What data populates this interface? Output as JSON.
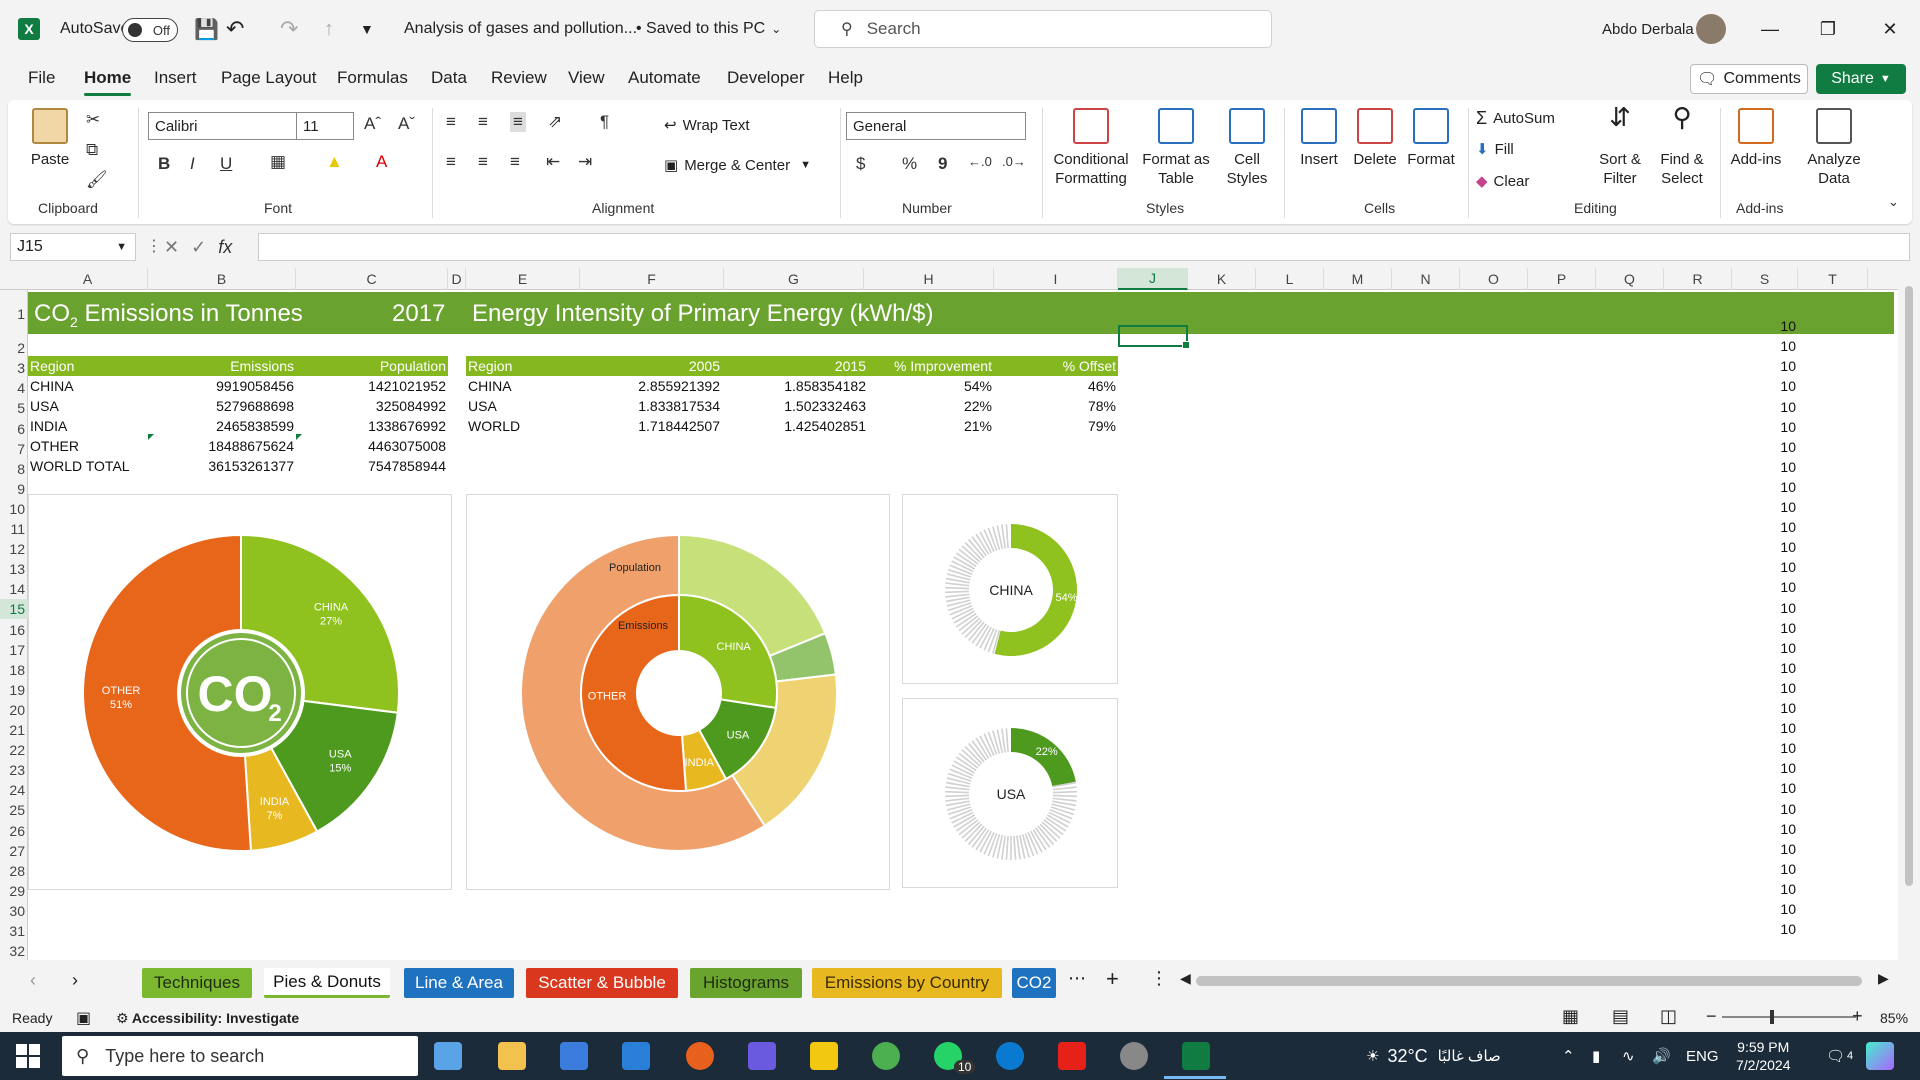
{
  "titlebar": {
    "autosave_label": "AutoSave",
    "autosave_state": "Off",
    "file_title": "Analysis of gases and pollution...",
    "save_status": "• Saved to this PC",
    "search_placeholder": "Search",
    "user_name": "Abdo Derbala"
  },
  "menu": {
    "tabs": [
      "File",
      "Home",
      "Insert",
      "Page Layout",
      "Formulas",
      "Data",
      "Review",
      "View",
      "Automate",
      "Developer",
      "Help"
    ],
    "active": "Home",
    "comments_label": "Comments",
    "share_label": "Share"
  },
  "ribbon": {
    "clipboard": {
      "paste": "Paste",
      "label": "Clipboard"
    },
    "font": {
      "name": "Calibri",
      "size": "11",
      "label": "Font",
      "bold": "B",
      "italic": "I",
      "underline": "U"
    },
    "alignment": {
      "wrap_text": "Wrap Text",
      "merge_center": "Merge & Center",
      "label": "Alignment"
    },
    "number": {
      "format": "General",
      "label": "Number",
      "currency": "$",
      "percent": "%",
      "comma": "9"
    },
    "styles": {
      "conditional": "Conditional Formatting",
      "format_table": "Format as Table",
      "cell_styles": "Cell Styles",
      "label": "Styles"
    },
    "cells": {
      "insert": "Insert",
      "delete": "Delete",
      "format": "Format",
      "label": "Cells"
    },
    "editing": {
      "autosum": "AutoSum",
      "fill": "Fill",
      "clear": "Clear",
      "sort_filter": "Sort & Filter",
      "find_select": "Find & Select",
      "label": "Editing"
    },
    "addins": {
      "addins": "Add-ins",
      "analyze": "Analyze Data",
      "label": "Add-ins"
    }
  },
  "formula_bar": {
    "name_box": "J15",
    "fx": "fx",
    "content": ""
  },
  "columns": [
    "A",
    "B",
    "C",
    "D",
    "E",
    "F",
    "G",
    "H",
    "I",
    "J",
    "K",
    "L",
    "M",
    "N",
    "O",
    "P",
    "Q",
    "R",
    "S",
    "T"
  ],
  "selected_column": "J",
  "rows": [
    "1",
    "2",
    "3",
    "4",
    "5",
    "6",
    "7",
    "8",
    "9",
    "10",
    "11",
    "12",
    "13",
    "14",
    "15",
    "16",
    "17",
    "18",
    "19",
    "20",
    "21",
    "22",
    "23",
    "24",
    "25",
    "26",
    "27",
    "28",
    "29",
    "30",
    "31",
    "32"
  ],
  "selected_row": "15",
  "banner": {
    "left_title_prefix": "CO",
    "left_title_sub": "2",
    "left_title_suffix": " Emissions in Tonnes",
    "year": "2017",
    "right_title": "Energy Intensity of Primary Energy (kWh/$)"
  },
  "table1": {
    "headers": [
      "Region",
      "Emissions",
      "Population"
    ],
    "rows": [
      [
        "CHINA",
        "9919058456",
        "1421021952"
      ],
      [
        "USA",
        "5279688698",
        "325084992"
      ],
      [
        "INDIA",
        "2465838599",
        "1338676992"
      ],
      [
        "OTHER",
        "18488675624",
        "4463075008"
      ],
      [
        "WORLD TOTAL",
        "36153261377",
        "7547858944"
      ]
    ]
  },
  "table2": {
    "headers": [
      "Region",
      "2005",
      "2015",
      "% Improvement",
      "% Offset"
    ],
    "rows": [
      [
        "CHINA",
        "2.855921392",
        "1.858354182",
        "54%",
        "46%"
      ],
      [
        "USA",
        "1.833817534",
        "1.502332463",
        "22%",
        "78%"
      ],
      [
        "WORLD",
        "1.718442507",
        "1.425402851",
        "21%",
        "79%"
      ]
    ]
  },
  "column_s_value": "10",
  "chart_data": [
    {
      "type": "pie",
      "title": "",
      "center_label_main": "CO",
      "center_label_sub": "2",
      "slices": [
        {
          "label": "CHINA",
          "value": 27,
          "display": "27%",
          "color": "#8fc21f"
        },
        {
          "label": "USA",
          "value": 15,
          "display": "15%",
          "color": "#4e9a1f"
        },
        {
          "label": "INDIA",
          "value": 7,
          "display": "7%",
          "color": "#e8b820"
        },
        {
          "label": "OTHER",
          "value": 51,
          "display": "51%",
          "color": "#e8661a"
        }
      ]
    },
    {
      "type": "pie",
      "title": "",
      "inner_ring_label": "Emissions",
      "outer_ring_label": "Population",
      "inner": [
        {
          "label": "CHINA",
          "value": 9919058456,
          "color": "#8fc21f"
        },
        {
          "label": "USA",
          "value": 5279688698,
          "color": "#4e9a1f"
        },
        {
          "label": "INDIA",
          "value": 2465838599,
          "color": "#e8b820"
        },
        {
          "label": "OTHER",
          "value": 18488675624,
          "color": "#e8661a"
        }
      ],
      "outer": [
        {
          "label": "CHINA",
          "value": 1421021952,
          "color": "#c6e07a"
        },
        {
          "label": "USA",
          "value": 325084992,
          "color": "#93c46b"
        },
        {
          "label": "INDIA",
          "value": 1338676992,
          "color": "#efd271"
        },
        {
          "label": "OTHER",
          "value": 4463075008,
          "color": "#efa06b"
        }
      ]
    },
    {
      "type": "pie",
      "title": "",
      "center_label": "CHINA",
      "value": 54,
      "display": "54%",
      "color": "#8fc21f"
    },
    {
      "type": "pie",
      "title": "",
      "center_label": "USA",
      "value": 22,
      "display": "22%",
      "color": "#4e9a1f"
    }
  ],
  "sheets": [
    {
      "name": "Techniques",
      "bg": "#7cb82f",
      "fg": "#1d2b10"
    },
    {
      "name": "Pies & Donuts",
      "bg": "#f3f3f3",
      "fg": "#111"
    },
    {
      "name": "Line & Area",
      "bg": "#1e72c0",
      "fg": "#ffffff"
    },
    {
      "name": "Scatter & Bubble",
      "bg": "#d9381e",
      "fg": "#ffffff"
    },
    {
      "name": "Histograms",
      "bg": "#6aa32e",
      "fg": "#1d2b10"
    },
    {
      "name": "Emissions by Country",
      "bg": "#e8b820",
      "fg": "#3a2c00"
    },
    {
      "name": "CO2",
      "bg": "#1e72c0",
      "fg": "#ffffff"
    }
  ],
  "statusbar": {
    "ready": "Ready",
    "accessibility": "Accessibility: Investigate",
    "zoom": "85%"
  },
  "taskbar": {
    "search_placeholder": "Type here to search",
    "weather": "32°C",
    "weather_desc": "صاف غالبًا",
    "language": "ENG",
    "time": "9:59 PM",
    "date": "7/2/2024",
    "whatsapp_badge": "10",
    "notif_count": "4"
  }
}
